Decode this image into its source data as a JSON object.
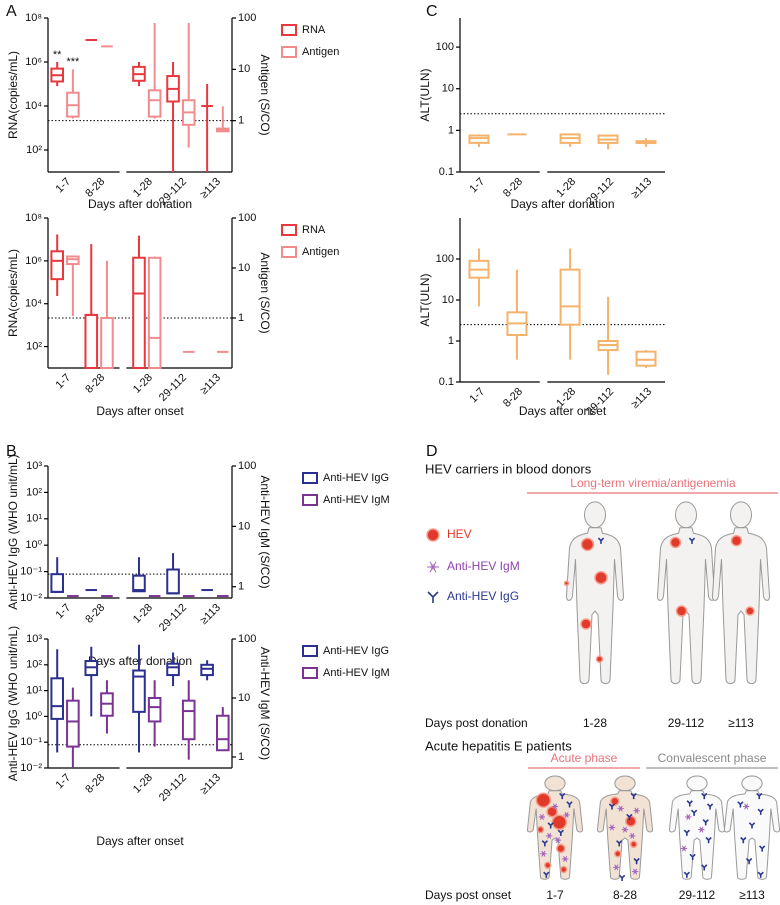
{
  "panel_labels": [
    "A",
    "B",
    "C",
    "D"
  ],
  "chart_data": [
    {
      "type": "box",
      "ylabel": "RNA(copies/mL)",
      "y2label": "Antigen (S/CO)",
      "xlabel": "Days after donation",
      "categories": [
        "1-7",
        "8-28",
        "1-28",
        "29-112",
        "≥113"
      ],
      "log": true,
      "ylim": [
        10,
        100000000
      ],
      "yticks": [
        {
          "value": 100,
          "label": "10²"
        },
        {
          "value": 10000,
          "label": "10⁴"
        },
        {
          "value": 1000000,
          "label": "10⁶"
        },
        {
          "value": 100000000,
          "label": "10⁸"
        }
      ],
      "y2lim": [
        0.1,
        100
      ],
      "y2ticks": [
        1,
        10,
        100
      ],
      "cutoff": {
        "axis": "y2",
        "value": 1
      },
      "legend": "right",
      "series": [
        {
          "name": "RNA",
          "color": "#e8383d",
          "values": [
            {
              "min": 80000,
              "q1": 130000,
              "median": 250000,
              "q3": 500000,
              "max": 1000000
            },
            {
              "median": 10000000
            },
            {
              "min": 80000,
              "q1": 140000,
              "median": 280000,
              "q3": 600000,
              "max": 1000000
            },
            {
              "min": 10,
              "q1": 16000,
              "median": 60000,
              "q3": 230000,
              "max": 1000000
            },
            {
              "min": 10,
              "median": 10000,
              "max": 100000
            }
          ],
          "value_labels": [
            "**",
            null,
            null,
            null,
            null
          ]
        },
        {
          "name": "Antigen",
          "color": "#f28b8e",
          "axis": "y2",
          "values": [
            {
              "min": 1.1,
              "q1": 1.2,
              "median": 2,
              "q3": 3.5,
              "max": 10
            },
            {
              "median": 28
            },
            {
              "min": 1.1,
              "q1": 1.2,
              "median": 2.5,
              "q3": 3.9,
              "max": 80
            },
            {
              "min": 0.3,
              "q1": 0.83,
              "median": 1.45,
              "q3": 2.5,
              "max": 80
            },
            {
              "min": 0.6,
              "q1": 0.62,
              "median": 0.65,
              "q3": 0.7,
              "max": 1.9
            }
          ],
          "value_labels": [
            "***",
            null,
            null,
            null,
            null
          ]
        }
      ]
    },
    {
      "type": "box",
      "ylabel": "RNA(copies/mL)",
      "y2label": "Antigen (S/CO)",
      "xlabel": "Days after onset",
      "categories": [
        "1-7",
        "8-28",
        "1-28",
        "29-112",
        "≥113"
      ],
      "log": true,
      "ylim": [
        10,
        100000000
      ],
      "yticks": [
        {
          "value": 100,
          "label": "10²"
        },
        {
          "value": 10000,
          "label": "10⁴"
        },
        {
          "value": 1000000,
          "label": "10⁶"
        },
        {
          "value": 100000000,
          "label": "10⁸"
        }
      ],
      "y2lim": [
        0.1,
        100
      ],
      "y2ticks": [
        1,
        10,
        100
      ],
      "cutoff": {
        "axis": "y2",
        "value": 1
      },
      "legend": "right",
      "series": [
        {
          "name": "RNA",
          "color": "#e8383d",
          "values": [
            {
              "min": 23000,
              "q1": 140000,
              "median": 1000000,
              "q3": 2800000,
              "max": 17000000
            },
            {
              "min": 10,
              "q1": 10,
              "median": 3000,
              "q3": 3000,
              "max": 6000000
            },
            {
              "min": 10,
              "q1": 10,
              "median": 30000,
              "q3": 1400000,
              "max": 15000000
            },
            null,
            null
          ]
        },
        {
          "name": "Antigen",
          "color": "#f28b8e",
          "axis": "y2",
          "values": [
            {
              "min": 1.1,
              "q1": 12,
              "median": 15,
              "q3": 17,
              "max": 17
            },
            {
              "min": 0.1,
              "q1": 0.1,
              "median": 1,
              "q3": 1,
              "max": 14
            },
            {
              "min": 0.1,
              "q1": 0.1,
              "median": 0.4,
              "q3": 16,
              "max": 17
            },
            {
              "median": 0.21
            },
            {
              "median": 0.21
            }
          ]
        }
      ]
    },
    {
      "type": "box",
      "ylabel": "Anti-HEV IgG (WHO unit/mL)",
      "y2label": "Anti-HEV IgM (S/CO)",
      "xlabel": "Days after donation",
      "categories": [
        "1-7",
        "8-28",
        "1-28",
        "29-112",
        "≥113"
      ],
      "log": true,
      "ylim": [
        0.01,
        1000
      ],
      "yticks": [
        {
          "value": 0.01,
          "label": "10⁻²"
        },
        {
          "value": 0.1,
          "label": "10⁻¹"
        },
        {
          "value": 1,
          "label": "10⁰"
        },
        {
          "value": 10,
          "label": "10¹"
        },
        {
          "value": 100,
          "label": "10²"
        },
        {
          "value": 1000,
          "label": "10³"
        }
      ],
      "y2lim": [
        0.65,
        100
      ],
      "y2ticks": [
        1,
        10,
        100
      ],
      "cutoff": {
        "axis": "y",
        "value": 0.08
      },
      "legend": "right",
      "series": [
        {
          "name": "Anti-HEV IgG",
          "color": "#2b2f8f",
          "values": [
            {
              "min": 0.017,
              "q1": 0.017,
              "median": 0.017,
              "q3": 0.08,
              "max": 0.35
            },
            {
              "median": 0.02
            },
            {
              "min": 0.018,
              "q1": 0.018,
              "median": 0.02,
              "q3": 0.07,
              "max": 0.35
            },
            {
              "min": 0.015,
              "q1": 0.015,
              "median": 0.015,
              "q3": 0.12,
              "max": 0.5
            },
            {
              "median": 0.02
            }
          ]
        },
        {
          "name": "Anti-HEV IgM",
          "color": "#7b3294",
          "axis": "y2",
          "values": [
            {
              "median": 0.7
            },
            {
              "median": 0.7
            },
            {
              "median": 0.7
            },
            {
              "median": 0.7
            },
            {
              "median": 0.7
            }
          ]
        }
      ]
    },
    {
      "type": "box",
      "ylabel": "Anti-HEV IgG (WHO unit/mL)",
      "y2label": "Anti-HEV IgM (S/CO)",
      "xlabel": "Days after onset",
      "categories": [
        "1-7",
        "8-28",
        "1-28",
        "29-112",
        "≥113"
      ],
      "log": true,
      "ylim": [
        0.01,
        1000
      ],
      "yticks": [
        {
          "value": 0.01,
          "label": "10⁻²"
        },
        {
          "value": 0.1,
          "label": "10⁻¹"
        },
        {
          "value": 1,
          "label": "10⁰"
        },
        {
          "value": 10,
          "label": "10¹"
        },
        {
          "value": 100,
          "label": "10²"
        },
        {
          "value": 1000,
          "label": "10³"
        }
      ],
      "y2lim": [
        0.65,
        100
      ],
      "y2ticks": [
        1,
        10,
        100
      ],
      "cutoff": {
        "axis": "y",
        "value": 0.08
      },
      "legend": "right",
      "series": [
        {
          "name": "Anti-HEV IgG",
          "color": "#2b2f8f",
          "values": [
            {
              "min": 0.04,
              "q1": 0.8,
              "median": 2.5,
              "q3": 30,
              "max": 400
            },
            {
              "min": 1,
              "q1": 40,
              "median": 80,
              "q3": 140,
              "max": 500
            },
            {
              "min": 0.04,
              "q1": 1.5,
              "median": 35,
              "q3": 60,
              "max": 600
            },
            {
              "min": 15,
              "q1": 40,
              "median": 80,
              "q3": 110,
              "max": 300
            },
            {
              "min": 25,
              "q1": 40,
              "median": 70,
              "q3": 100,
              "max": 150
            }
          ]
        },
        {
          "name": "Anti-HEV IgM",
          "color": "#7b3294",
          "axis": "y2",
          "values": [
            {
              "min": 0.65,
              "q1": 1.5,
              "median": 4,
              "q3": 9,
              "max": 15
            },
            {
              "min": 2.5,
              "q1": 5,
              "median": 8,
              "q3": 12,
              "max": 20
            },
            {
              "min": 1.5,
              "q1": 4,
              "median": 7,
              "q3": 10,
              "max": 20
            },
            {
              "min": 0.9,
              "q1": 2,
              "median": 6,
              "q3": 9,
              "max": 20
            },
            {
              "min": 1.3,
              "q1": 1.3,
              "median": 2,
              "q3": 5,
              "max": 7
            }
          ]
        }
      ]
    },
    {
      "type": "box",
      "ylabel": "ALT(ULN)",
      "xlabel": "Days after donation",
      "categories": [
        "1-7",
        "8-28",
        "1-28",
        "29-112",
        "≥113"
      ],
      "log": true,
      "ylim": [
        0.1,
        500
      ],
      "yticks": [
        0.1,
        1,
        10,
        100
      ],
      "cutoff": {
        "axis": "y",
        "value": 2.5
      },
      "color": "#f5b26b",
      "values": [
        {
          "min": 0.4,
          "q1": 0.5,
          "median": 0.65,
          "q3": 0.75,
          "max": 0.8
        },
        {
          "median": 0.8
        },
        {
          "min": 0.4,
          "q1": 0.5,
          "median": 0.65,
          "q3": 0.8,
          "max": 0.85
        },
        {
          "min": 0.35,
          "q1": 0.5,
          "median": 0.6,
          "q3": 0.75,
          "max": 0.8
        },
        {
          "min": 0.4,
          "q1": 0.5,
          "median": 0.5,
          "q3": 0.55,
          "max": 0.65
        }
      ]
    },
    {
      "type": "box",
      "ylabel": "ALT(ULN)",
      "xlabel": "Days after onset",
      "categories": [
        "1-7",
        "8-28",
        "1-28",
        "29-112",
        "≥113"
      ],
      "log": true,
      "ylim": [
        0.1,
        1000
      ],
      "yticks": [
        0.1,
        1,
        10,
        100
      ],
      "cutoff": {
        "axis": "y",
        "value": 2.5
      },
      "color": "#f5b26b",
      "values": [
        {
          "min": 7,
          "q1": 35,
          "median": 55,
          "q3": 90,
          "max": 180
        },
        {
          "min": 0.35,
          "q1": 1.4,
          "median": 2.7,
          "q3": 5,
          "max": 55
        },
        {
          "min": 0.35,
          "q1": 2.5,
          "median": 7,
          "q3": 55,
          "max": 180
        },
        {
          "min": 0.15,
          "q1": 0.6,
          "median": 0.8,
          "q3": 1,
          "max": 12
        },
        {
          "min": 0.22,
          "q1": 0.25,
          "median": 0.35,
          "q3": 0.55,
          "max": 0.6
        }
      ]
    }
  ],
  "diagram": {
    "donors": {
      "title": "HEV carriers in blood donors",
      "phase": "Long-term viremia/antigenemia",
      "axis_label": "Days post donation",
      "stages": [
        "1-28",
        "29-112",
        "≥113"
      ]
    },
    "legend": [
      "HEV",
      "Anti-HEV IgM",
      "Anti-HEV IgG"
    ],
    "patients": {
      "title": "Acute hepatitis E patients",
      "phases": [
        "Acute phase",
        "Convalescent phase"
      ],
      "axis_label": "Days post onset",
      "stages": [
        "1-7",
        "8-28",
        "29-112",
        "≥113"
      ]
    }
  }
}
